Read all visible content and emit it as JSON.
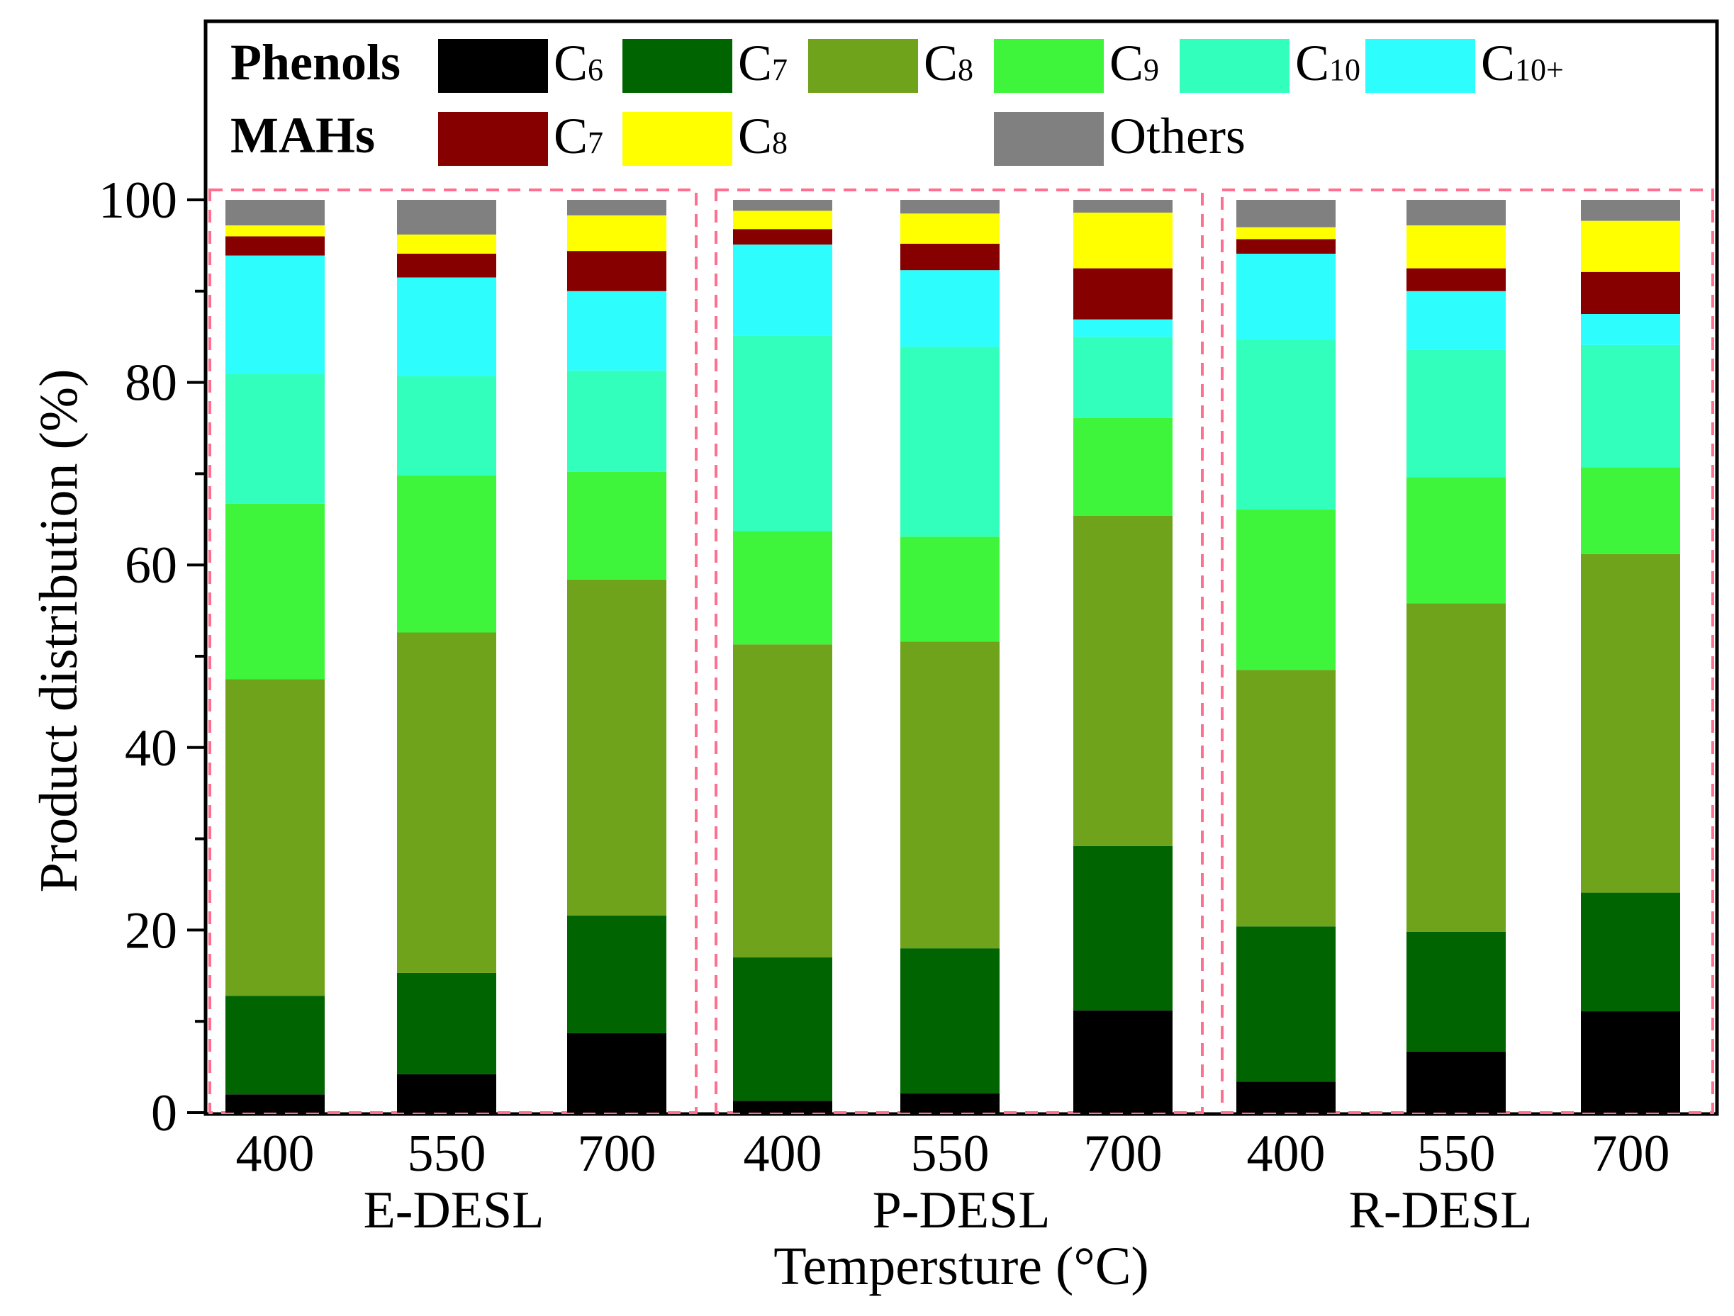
{
  "chart_data": {
    "type": "bar",
    "stacked": true,
    "ylabel": "Product distribution (%)",
    "xlabel": "Tempersture (°C)",
    "ylim": [
      0,
      100
    ],
    "yticks": [
      "0",
      "20",
      "40",
      "60",
      "80",
      "100"
    ],
    "groups": [
      {
        "name": "E-DESL",
        "categories": [
          "400",
          "550",
          "700"
        ]
      },
      {
        "name": "P-DESL",
        "categories": [
          "400",
          "550",
          "700"
        ]
      },
      {
        "name": "R-DESL",
        "categories": [
          "400",
          "550",
          "700"
        ]
      }
    ],
    "legend": {
      "groups": [
        {
          "label": "Phenols",
          "entries": [
            {
              "base": "C",
              "sub": "6",
              "color": "#000000"
            },
            {
              "base": "C",
              "sub": "7",
              "color": "#006400"
            },
            {
              "base": "C",
              "sub": "8",
              "color": "#6fa31b"
            },
            {
              "base": "C",
              "sub": "9",
              "color": "#3ef53c"
            },
            {
              "base": "C",
              "sub": "10",
              "color": "#33ffbd"
            },
            {
              "base": "C",
              "sub": "10+",
              "color": "#2dfdfd"
            }
          ]
        },
        {
          "label": "MAHs",
          "entries": [
            {
              "base": "C",
              "sub": "7",
              "color": "#870000"
            },
            {
              "base": "C",
              "sub": "8",
              "color": "#ffff00"
            }
          ]
        },
        {
          "label": "",
          "entries": [
            {
              "base": "Others",
              "sub": "",
              "color": "#808080"
            }
          ]
        }
      ]
    },
    "series": [
      {
        "name": "Phenols C6",
        "color": "#000000",
        "values": [
          2.0,
          4.2,
          8.7,
          1.3,
          2.1,
          11.2,
          3.4,
          6.7,
          11.1
        ]
      },
      {
        "name": "Phenols C7",
        "color": "#006400",
        "values": [
          10.8,
          11.1,
          12.9,
          15.7,
          15.9,
          18.0,
          17.0,
          13.1,
          13.0
        ]
      },
      {
        "name": "Phenols C8",
        "color": "#6fa31b",
        "values": [
          34.7,
          37.3,
          36.8,
          34.3,
          33.6,
          36.2,
          28.1,
          36.0,
          37.1
        ]
      },
      {
        "name": "Phenols C9",
        "color": "#3ef53c",
        "values": [
          19.2,
          17.2,
          11.8,
          12.4,
          11.5,
          10.7,
          17.6,
          13.8,
          9.5
        ]
      },
      {
        "name": "Phenols C10",
        "color": "#33ffbd",
        "values": [
          14.2,
          10.9,
          11.1,
          21.4,
          20.8,
          8.9,
          18.6,
          14.0,
          13.4
        ]
      },
      {
        "name": "Phenols C10+",
        "color": "#2dfdfd",
        "values": [
          13.0,
          10.8,
          8.7,
          10.0,
          8.4,
          1.9,
          9.4,
          6.4,
          3.4
        ]
      },
      {
        "name": "MAHs C7",
        "color": "#870000",
        "values": [
          2.1,
          2.6,
          4.4,
          1.7,
          2.9,
          5.6,
          1.6,
          2.5,
          4.6
        ]
      },
      {
        "name": "MAHs C8",
        "color": "#ffff00",
        "values": [
          1.2,
          2.1,
          3.9,
          2.0,
          3.3,
          6.1,
          1.3,
          4.7,
          5.6
        ]
      },
      {
        "name": "Others",
        "color": "#808080",
        "values": [
          2.8,
          3.8,
          1.7,
          1.2,
          1.5,
          1.4,
          3.0,
          2.8,
          2.3
        ]
      }
    ]
  }
}
